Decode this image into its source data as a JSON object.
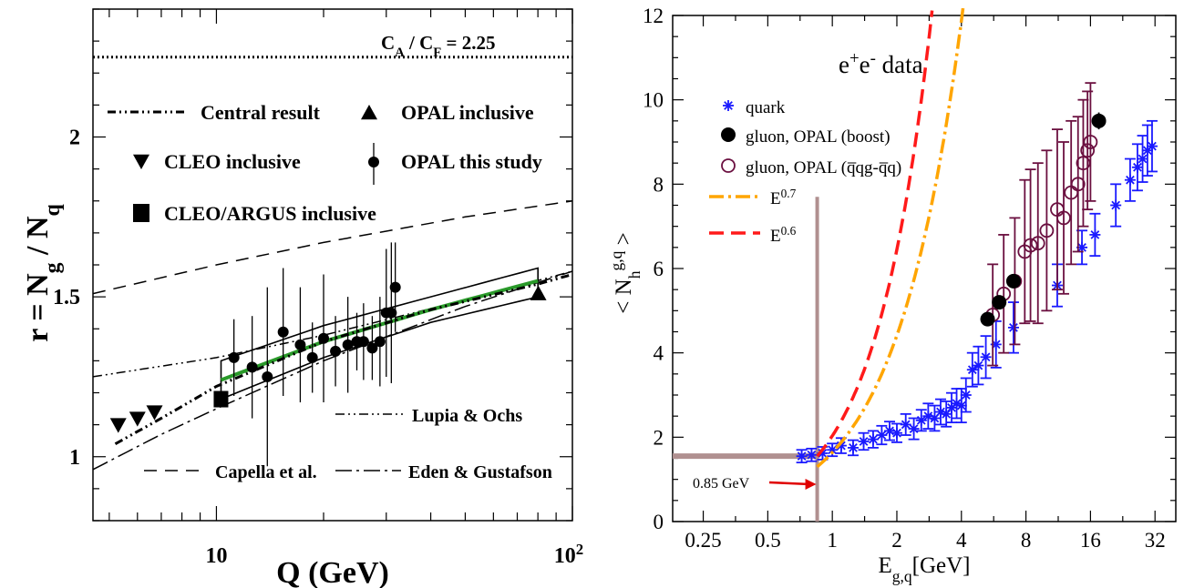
{
  "chart_data": [
    {
      "type": "line",
      "title": "",
      "xlabel": "Q (GeV)",
      "ylabel": "r = N_g / N_q",
      "xscale": "log",
      "xlim": [
        4.5,
        100
      ],
      "ylim": [
        0.8,
        2.4
      ],
      "xticks": [
        {
          "value": 10,
          "label": "10"
        },
        {
          "value": 100,
          "label": "10",
          "sup": "2"
        }
      ],
      "yticks": [
        {
          "value": 1,
          "label": "1"
        },
        {
          "value": 1.5,
          "label": "1.5"
        },
        {
          "value": 2,
          "label": "2"
        }
      ],
      "reference_line": {
        "y": 2.25,
        "label_main": "C",
        "label_sub_a": "A",
        "label_sep": " / C",
        "label_sub_f": "F",
        "label_value": " = 2.25"
      },
      "legend": [
        {
          "name": "Central result",
          "marker": "dash-dot-dot"
        },
        {
          "name": "OPAL inclusive",
          "marker": "triangle-up"
        },
        {
          "name": "CLEO inclusive",
          "marker": "triangle-down"
        },
        {
          "name": "OPAL this study",
          "marker": "circle-errorbar"
        },
        {
          "name": "CLEO/ARGUS inclusive",
          "marker": "square"
        }
      ],
      "curve_labels": [
        {
          "name": "Lupia & Ochs"
        },
        {
          "name": "Capella et al."
        },
        {
          "name": "Eden & Gustafson"
        }
      ],
      "series": [
        {
          "name": "OPAL this study",
          "points": [
            {
              "x": 11.2,
              "y": 1.31,
              "err": 0.12
            },
            {
              "x": 12.6,
              "y": 1.28,
              "err": 0.16
            },
            {
              "x": 13.9,
              "y": 1.25,
              "err": 0.28
            },
            {
              "x": 15.4,
              "y": 1.39,
              "err": 0.2
            },
            {
              "x": 17.2,
              "y": 1.35,
              "err": 0.18
            },
            {
              "x": 18.6,
              "y": 1.31,
              "err": 0.11
            },
            {
              "x": 20.0,
              "y": 1.37,
              "err": 0.2
            },
            {
              "x": 21.6,
              "y": 1.33,
              "err": 0.11
            },
            {
              "x": 23.4,
              "y": 1.35,
              "err": 0.15
            },
            {
              "x": 24.8,
              "y": 1.36,
              "err": 0.09
            },
            {
              "x": 25.9,
              "y": 1.36,
              "err": 0.12
            },
            {
              "x": 27.4,
              "y": 1.34,
              "err": 0.1
            },
            {
              "x": 28.8,
              "y": 1.36,
              "err": 0.14
            },
            {
              "x": 30.0,
              "y": 1.45,
              "err": 0.2
            },
            {
              "x": 31.0,
              "y": 1.45,
              "err": 0.22
            },
            {
              "x": 31.8,
              "y": 1.53,
              "err": 0.14
            }
          ]
        },
        {
          "name": "CLEO inclusive",
          "points": [
            {
              "x": 5.3,
              "y": 1.1
            },
            {
              "x": 6.0,
              "y": 1.12
            },
            {
              "x": 6.7,
              "y": 1.14
            }
          ]
        },
        {
          "name": "CLEO/ARGUS inclusive",
          "points": [
            {
              "x": 10.3,
              "y": 1.18
            }
          ]
        },
        {
          "name": "OPAL inclusive",
          "points": [
            {
              "x": 80.2,
              "y": 1.51
            }
          ]
        }
      ],
      "curves": {
        "central": [
          [
            5.2,
            1.04
          ],
          [
            7,
            1.12
          ],
          [
            10,
            1.22
          ],
          [
            20,
            1.36
          ],
          [
            40,
            1.46
          ],
          [
            80,
            1.54
          ],
          [
            100,
            1.57
          ]
        ],
        "band_upper": [
          [
            10.3,
            1.3
          ],
          [
            20,
            1.41
          ],
          [
            40,
            1.5
          ],
          [
            80,
            1.59
          ]
        ],
        "band_lower": [
          [
            10.3,
            1.18
          ],
          [
            20,
            1.31
          ],
          [
            40,
            1.42
          ],
          [
            80,
            1.5
          ]
        ],
        "green": [
          [
            10.3,
            1.24
          ],
          [
            20,
            1.36
          ],
          [
            40,
            1.46
          ],
          [
            80,
            1.55
          ]
        ],
        "capella": [
          [
            4.5,
            1.51
          ],
          [
            10,
            1.6
          ],
          [
            20,
            1.67
          ],
          [
            50,
            1.75
          ],
          [
            100,
            1.8
          ]
        ],
        "lupia": [
          [
            4.5,
            1.25
          ],
          [
            10,
            1.31
          ],
          [
            20,
            1.38
          ],
          [
            50,
            1.49
          ],
          [
            100,
            1.58
          ]
        ],
        "eden": [
          [
            4.5,
            0.96
          ],
          [
            7,
            1.07
          ],
          [
            10,
            1.15
          ],
          [
            20,
            1.3
          ],
          [
            50,
            1.47
          ],
          [
            100,
            1.58
          ]
        ]
      }
    },
    {
      "type": "scatter",
      "title": "",
      "annotation": {
        "main": "e",
        "sup1": "+",
        "mid": "e",
        "sup2": "-",
        "tail": " data"
      },
      "xlabel": {
        "main": "E",
        "sub": "g,q",
        "tail": "[GeV]"
      },
      "ylabel": {
        "open": "< N",
        "sub": "h",
        "sup": "g,q",
        "close": " >"
      },
      "xscale": "log",
      "xlim": [
        0.18,
        40
      ],
      "ylim": [
        0,
        12
      ],
      "xticks": [
        0.25,
        0.5,
        1,
        2,
        4,
        8,
        16,
        32
      ],
      "xtick_labels": [
        "0.25",
        "0.5",
        "1",
        "2",
        "4",
        "8",
        "16",
        "32"
      ],
      "yticks": [
        0,
        2,
        4,
        6,
        8,
        10,
        12
      ],
      "ytick_labels": [
        "0",
        "2",
        "4",
        "6",
        "8",
        "10",
        "12"
      ],
      "reference": {
        "x": 0.85,
        "y": 1.55,
        "label": "0.85 GeV"
      },
      "legend": [
        {
          "name": "quark",
          "marker": "asterisk",
          "color": "#1a1aff"
        },
        {
          "name": "gluon, OPAL (boost)",
          "marker": "filled-circle",
          "color": "#000000"
        },
        {
          "name": "gluon, OPAL (q̅qg-q̅q)",
          "marker": "open-circle",
          "color": "#6b1040"
        },
        {
          "name": "E",
          "sup": "0.7",
          "marker": "dash-dot",
          "color": "#ffa500"
        },
        {
          "name": "E",
          "sup": "0.6",
          "marker": "dash",
          "color": "#ff1a1a"
        }
      ],
      "series": [
        {
          "name": "quark",
          "points": [
            [
              0.72,
              1.55,
              0.15
            ],
            [
              0.8,
              1.58,
              0.15
            ],
            [
              0.9,
              1.62,
              0.15
            ],
            [
              1.0,
              1.7,
              0.15
            ],
            [
              1.1,
              1.8,
              0.18
            ],
            [
              1.25,
              1.75,
              0.18
            ],
            [
              1.4,
              1.9,
              0.2
            ],
            [
              1.55,
              1.95,
              0.2
            ],
            [
              1.7,
              2.05,
              0.22
            ],
            [
              1.85,
              2.15,
              0.22
            ],
            [
              2.0,
              2.1,
              0.22
            ],
            [
              2.2,
              2.3,
              0.25
            ],
            [
              2.4,
              2.2,
              0.25
            ],
            [
              2.6,
              2.4,
              0.25
            ],
            [
              2.8,
              2.5,
              0.3
            ],
            [
              3.0,
              2.45,
              0.3
            ],
            [
              3.2,
              2.6,
              0.3
            ],
            [
              3.4,
              2.55,
              0.3
            ],
            [
              3.6,
              2.7,
              0.35
            ],
            [
              3.8,
              2.8,
              0.35
            ],
            [
              4.0,
              2.75,
              0.4
            ],
            [
              4.2,
              3.0,
              0.4
            ],
            [
              4.5,
              3.6,
              0.4
            ],
            [
              4.8,
              3.7,
              0.45
            ],
            [
              5.2,
              3.9,
              0.5
            ],
            [
              5.8,
              4.2,
              0.55
            ],
            [
              7.0,
              4.6,
              0.6
            ],
            [
              11.2,
              5.6,
              0.5
            ],
            [
              14.6,
              6.5,
              0.4
            ],
            [
              16.8,
              6.8,
              0.5
            ],
            [
              21.0,
              7.5,
              0.5
            ],
            [
              24.5,
              8.1,
              0.5
            ],
            [
              26.5,
              8.4,
              0.55
            ],
            [
              28.0,
              8.6,
              0.55
            ],
            [
              29.5,
              8.8,
              0.6
            ],
            [
              31.0,
              8.9,
              0.6
            ]
          ]
        },
        {
          "name": "gluon, OPAL (boost)",
          "points": [
            [
              5.3,
              4.8,
              0.1
            ],
            [
              6.0,
              5.2,
              0.15
            ],
            [
              7.0,
              5.7,
              0.15
            ],
            [
              17.5,
              9.5,
              0.2
            ]
          ]
        },
        {
          "name": "gluon, OPAL (q̅qg-q̅q)",
          "points": [
            [
              5.6,
              4.9,
              1.2
            ],
            [
              6.3,
              5.4,
              1.4
            ],
            [
              7.1,
              5.7,
              1.5
            ],
            [
              7.9,
              6.4,
              1.7
            ],
            [
              8.4,
              6.55,
              1.8
            ],
            [
              9.1,
              6.6,
              1.9
            ],
            [
              10.0,
              6.9,
              1.9
            ],
            [
              11.2,
              7.4,
              1.9
            ],
            [
              12.0,
              7.2,
              1.8
            ],
            [
              13.0,
              7.8,
              1.7
            ],
            [
              14.0,
              8.0,
              1.6
            ],
            [
              14.8,
              8.5,
              1.5
            ],
            [
              15.5,
              8.8,
              1.4
            ],
            [
              16.0,
              9.0,
              1.4
            ]
          ]
        }
      ],
      "curves": {
        "E0.7": {
          "x0": 0.85,
          "y0": 1.3,
          "k": 0.7
        },
        "E0.6": {
          "x0": 0.85,
          "y0": 1.55,
          "k": 0.6
        }
      }
    }
  ]
}
